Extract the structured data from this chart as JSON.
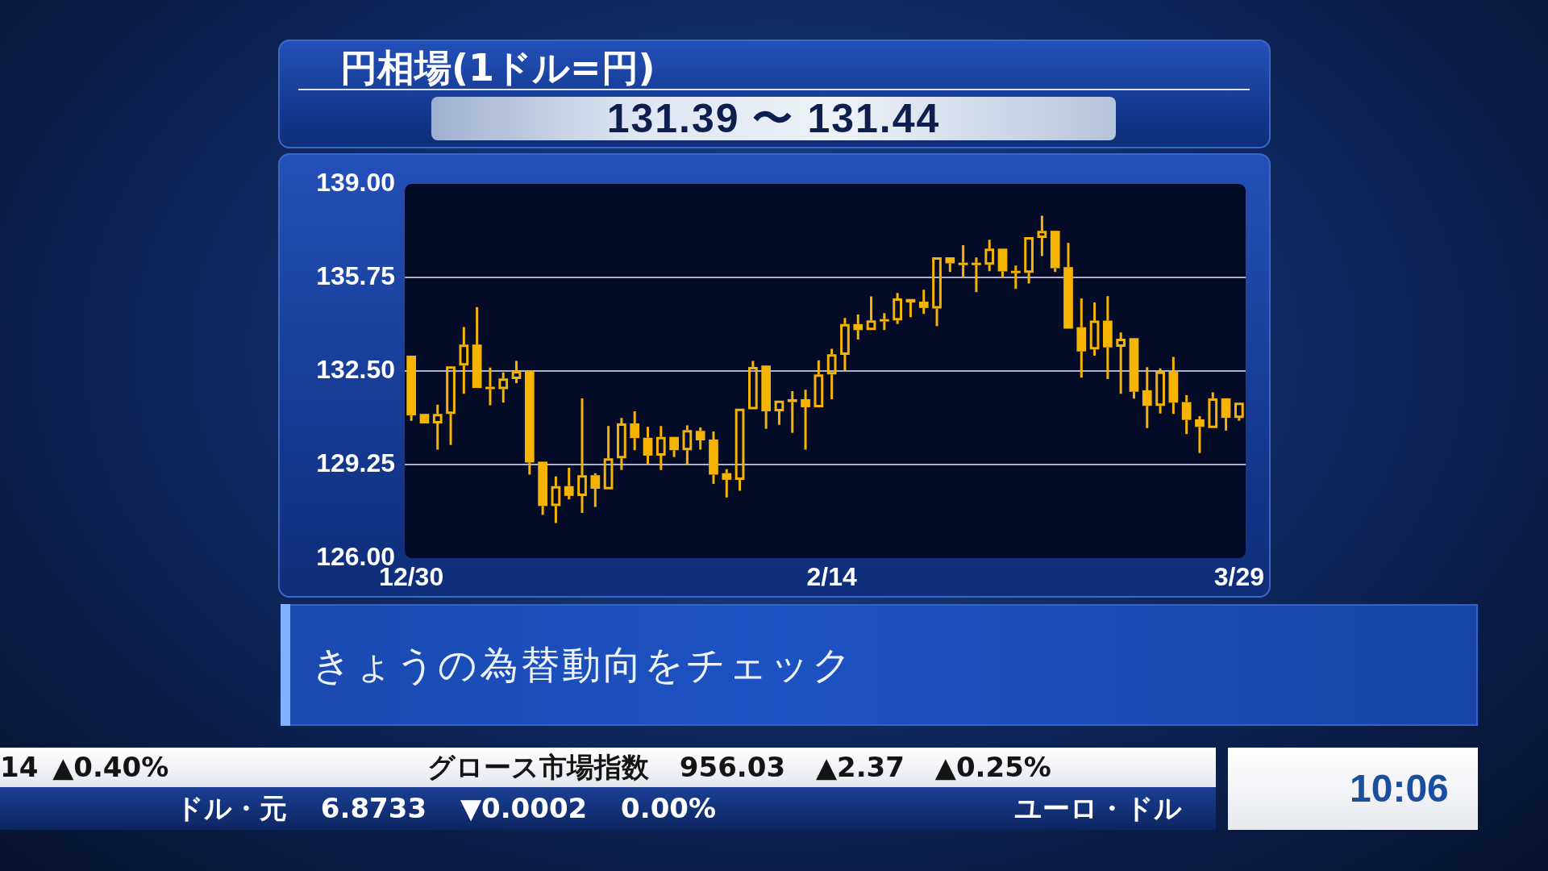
{
  "chart_data": {
    "type": "candlestick",
    "title": "円相場(1ドル=円)",
    "subtitle": "131.39 〜 131.44",
    "categories": [
      "12/30",
      null,
      null,
      null,
      null,
      null,
      null,
      null,
      null,
      null,
      null,
      null,
      null,
      null,
      null,
      null,
      null,
      null,
      null,
      null,
      null,
      null,
      null,
      null,
      null,
      null,
      null,
      null,
      null,
      null,
      null,
      null,
      "2/14",
      null,
      null,
      null,
      null,
      null,
      null,
      null,
      null,
      null,
      null,
      null,
      null,
      null,
      null,
      null,
      null,
      null,
      null,
      null,
      null,
      null,
      null,
      null,
      null,
      null,
      null,
      null,
      null,
      null,
      null,
      "3/29"
    ],
    "ohlc": [
      [
        133.03,
        133.06,
        130.77,
        130.96
      ],
      [
        131.01,
        131.03,
        130.65,
        130.68
      ],
      [
        130.68,
        131.33,
        129.77,
        131.01
      ],
      [
        131.01,
        132.66,
        129.93,
        132.66
      ],
      [
        132.69,
        134.03,
        131.71,
        133.42
      ],
      [
        133.42,
        134.72,
        131.91,
        131.91
      ],
      [
        131.91,
        132.62,
        131.31,
        131.91
      ],
      [
        131.87,
        132.45,
        131.4,
        132.24
      ],
      [
        132.22,
        132.85,
        132.08,
        132.5
      ],
      [
        132.5,
        132.5,
        128.9,
        129.32
      ],
      [
        129.35,
        129.37,
        127.5,
        127.81
      ],
      [
        127.81,
        128.84,
        127.22,
        128.5
      ],
      [
        128.5,
        129.14,
        128.04,
        128.16
      ],
      [
        128.16,
        131.55,
        127.57,
        128.88
      ],
      [
        128.88,
        128.95,
        127.78,
        128.41
      ],
      [
        128.39,
        130.59,
        128.34,
        129.47
      ],
      [
        129.47,
        130.87,
        129.06,
        130.68
      ],
      [
        130.68,
        131.1,
        129.75,
        130.17
      ],
      [
        130.18,
        130.56,
        129.28,
        129.56
      ],
      [
        129.56,
        130.59,
        129.06,
        130.21
      ],
      [
        130.21,
        130.26,
        129.51,
        129.75
      ],
      [
        129.75,
        130.61,
        129.23,
        130.45
      ],
      [
        130.42,
        130.54,
        129.77,
        130.09
      ],
      [
        130.12,
        130.4,
        128.58,
        128.9
      ],
      [
        128.95,
        129.09,
        128.11,
        128.72
      ],
      [
        128.72,
        131.19,
        128.34,
        131.19
      ],
      [
        131.17,
        132.85,
        131.17,
        132.64
      ],
      [
        132.69,
        132.69,
        130.49,
        131.1
      ],
      [
        131.1,
        131.49,
        130.63,
        131.47
      ],
      [
        131.42,
        131.8,
        130.35,
        131.52
      ],
      [
        131.52,
        131.85,
        129.77,
        131.24
      ],
      [
        131.24,
        132.87,
        131.24,
        132.38
      ],
      [
        132.38,
        133.27,
        131.52,
        133.08
      ],
      [
        133.06,
        134.34,
        132.5,
        134.13
      ],
      [
        134.13,
        134.46,
        133.59,
        133.92
      ],
      [
        133.92,
        135.09,
        133.92,
        134.26
      ],
      [
        134.26,
        134.51,
        133.92,
        134.26
      ],
      [
        134.26,
        135.21,
        134.13,
        135.02
      ],
      [
        135.0,
        135.0,
        134.37,
        134.88
      ],
      [
        134.91,
        135.32,
        134.48,
        134.69
      ],
      [
        134.67,
        136.45,
        134.06,
        136.45
      ],
      [
        136.45,
        136.47,
        135.94,
        136.24
      ],
      [
        136.22,
        136.87,
        135.75,
        136.22
      ],
      [
        136.22,
        136.44,
        135.24,
        136.22
      ],
      [
        136.19,
        137.06,
        135.97,
        136.75
      ],
      [
        136.75,
        136.75,
        135.75,
        135.96
      ],
      [
        135.94,
        136.16,
        135.35,
        135.94
      ],
      [
        135.91,
        137.15,
        135.54,
        137.15
      ],
      [
        137.12,
        137.89,
        136.49,
        137.37
      ],
      [
        137.37,
        137.37,
        135.94,
        136.07
      ],
      [
        136.11,
        136.95,
        133.92,
        133.97
      ],
      [
        134.02,
        135.02,
        132.27,
        133.18
      ],
      [
        133.25,
        134.88,
        133.03,
        134.25
      ],
      [
        134.25,
        135.1,
        132.22,
        133.32
      ],
      [
        133.34,
        133.84,
        131.71,
        133.62
      ],
      [
        133.64,
        133.64,
        131.54,
        131.78
      ],
      [
        131.83,
        132.63,
        130.52,
        131.29
      ],
      [
        131.29,
        132.59,
        131.02,
        132.48
      ],
      [
        132.48,
        132.99,
        131.01,
        131.4
      ],
      [
        131.42,
        131.66,
        130.31,
        130.8
      ],
      [
        130.82,
        130.93,
        129.65,
        130.56
      ],
      [
        130.52,
        131.76,
        130.49,
        131.55
      ],
      [
        131.55,
        131.55,
        130.43,
        130.87
      ],
      [
        130.87,
        131.44,
        130.77,
        131.4
      ]
    ],
    "color": "#f5b400",
    "ylim": [
      126,
      139
    ],
    "yticks": [
      {
        "value": 126,
        "label": "126.00"
      },
      129.25,
      {
        "value": 132.5,
        "label": "132.50"
      },
      135.75,
      {
        "value": 139,
        "label": "139.00"
      }
    ],
    "grid": "y",
    "annotations": [
      "きょうの為替動向をチェック",
      "14 ▲0.40%",
      "グロース市場指数 956.03 ▲2.37 ▲0.25%",
      "ドル・元 6.8733 ▼0.0002 0.00%",
      "ユーロ・ドル",
      "10:06"
    ]
  }
}
